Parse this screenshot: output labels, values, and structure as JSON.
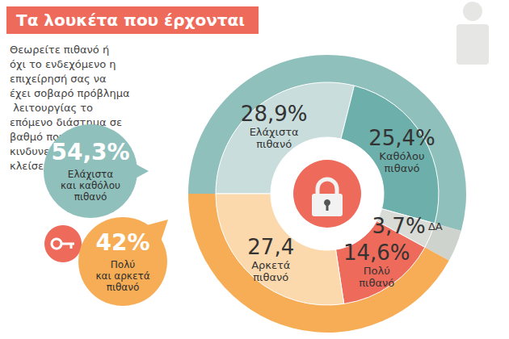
{
  "chart_data": [
    {
      "type": "pie",
      "title": "Τα λουκέτα που έρχονται",
      "subtitle": "Θεωρείτε πιθανό ή όχι το ενδεχόμενο η επιχείρησή σας να έχει σοβαρό πρόβλημα λειτουργίας το επόμενο διάστημα σε βαθμό που θα κινδυνεύει να κλείσει;",
      "categories": [
        "Ελάχιστα πιθανό",
        "Καθόλου πιθανό",
        "ΔΑ",
        "Πολύ πιθανό",
        "Αρκετά πιθανό"
      ],
      "values": [
        28.9,
        25.4,
        3.7,
        14.6,
        27.4
      ],
      "value_labels": [
        "28,9%",
        "25,4%",
        "3,7%",
        "14,6%",
        "27,4"
      ],
      "colors": [
        "#c9dedc",
        "#6db0ab",
        "#d8dbd6",
        "#ee6a5a",
        "#fbd9ac"
      ],
      "data_labels": true
    },
    {
      "type": "pie",
      "categories": [
        "Ελάχιστα και καθόλου πιθανό",
        "ΔΑ",
        "Πολύ και αρκετά πιθανό"
      ],
      "values": [
        54.3,
        3.7,
        42
      ],
      "value_labels": [
        "54,3%",
        null,
        "42%"
      ],
      "colors": [
        "#8fc0bc",
        "#cfd3cd",
        "#f6ad55"
      ]
    }
  ]
}
